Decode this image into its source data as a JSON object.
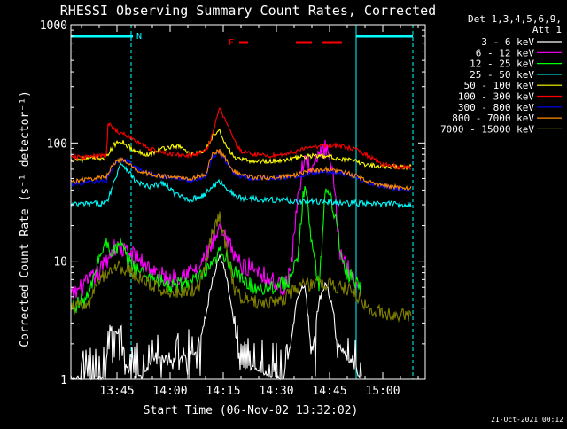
{
  "chart_data": {
    "type": "line",
    "title": "RHESSI Observing Summary Count Rates, Corrected",
    "xlabel": "Start Time (06-Nov-02 13:32:02)",
    "ylabel": "Corrected Count Rate (s⁻¹ detector⁻¹)",
    "y_scale": "log",
    "ylim": [
      1,
      1000
    ],
    "xlim": [
      0,
      100
    ],
    "x_units": "minutes after 13:32:02",
    "x_ticks": [
      {
        "value": 13,
        "label": "13:45"
      },
      {
        "value": 28,
        "label": "14:00"
      },
      {
        "value": 43,
        "label": "14:15"
      },
      {
        "value": 58,
        "label": "14:30"
      },
      {
        "value": 73,
        "label": "14:45"
      },
      {
        "value": 88,
        "label": "15:00"
      }
    ],
    "y_ticks": [
      {
        "value": 1,
        "label": "1"
      },
      {
        "value": 10,
        "label": "10"
      },
      {
        "value": 100,
        "label": "100"
      },
      {
        "value": 1000,
        "label": "1000"
      }
    ],
    "legend": {
      "placement": "top-right",
      "header": [
        "Det 1,3,4,5,6,9,",
        "Att 1"
      ]
    },
    "flag_markers": {
      "night_label": "N",
      "flare_label": "F"
    },
    "timestamp": "21-Oct-2021 00:12",
    "series": [
      {
        "name": "3 - 6 keV",
        "color": "#ffffff",
        "x": [
          0,
          10,
          10.5,
          14,
          16,
          20,
          24,
          28,
          32,
          36,
          38,
          40,
          42,
          44,
          46,
          48,
          52,
          56,
          60,
          62,
          64,
          66,
          68,
          70,
          72,
          74,
          75,
          80,
          82
        ],
        "y": [
          1,
          1,
          2.7,
          2.7,
          1.2,
          1,
          1.6,
          1.4,
          1.5,
          1.8,
          3.5,
          7,
          11.5,
          7,
          3,
          1.3,
          1.2,
          1.1,
          1,
          2,
          5,
          6.5,
          1.6,
          4.6,
          6.5,
          4,
          2,
          1.3,
          1
        ]
      },
      {
        "name": "6 - 12 keV",
        "color": "#ff00ff",
        "x": [
          0,
          8,
          12,
          16,
          20,
          24,
          28,
          32,
          36,
          40,
          42,
          44,
          46,
          48,
          52,
          56,
          60,
          62,
          64,
          66,
          68,
          70,
          72,
          74,
          76,
          78,
          80,
          82
        ],
        "y": [
          5,
          8,
          13,
          12,
          10,
          8,
          7,
          8,
          8.5,
          14,
          18,
          15,
          12,
          9,
          9,
          7,
          6,
          8,
          35,
          80,
          55,
          82,
          90,
          50,
          12,
          9,
          7,
          6.2
        ]
      },
      {
        "name": "12 - 25 keV",
        "color": "#00ff00",
        "x": [
          0,
          5,
          8,
          10,
          12,
          14,
          16,
          20,
          24,
          28,
          32,
          36,
          40,
          42,
          44,
          46,
          48,
          52,
          56,
          60,
          62,
          64,
          66,
          68,
          70,
          72,
          74,
          76,
          78,
          80,
          82
        ],
        "y": [
          4,
          5,
          11,
          14,
          12,
          14,
          10,
          8,
          7,
          6,
          6.5,
          7,
          9,
          12,
          11,
          8,
          7,
          6,
          6,
          6.5,
          7,
          10,
          50,
          14,
          6,
          45,
          30,
          12,
          8,
          7,
          6
        ]
      },
      {
        "name": "25 - 50 keV",
        "color": "#00ffff",
        "x": [
          0,
          10,
          12,
          14,
          16,
          18,
          22,
          26,
          30,
          34,
          38,
          40,
          42,
          44,
          46,
          48,
          52,
          56,
          60,
          64,
          68,
          72,
          76,
          80,
          84,
          90,
          96
        ],
        "y": [
          30,
          31,
          45,
          68,
          60,
          48,
          42,
          46,
          36,
          33,
          37,
          43,
          47,
          42,
          36,
          34,
          34,
          33,
          33,
          32,
          32,
          32,
          31,
          31,
          30.5,
          30.5,
          30
        ]
      },
      {
        "name": "50 - 100 keV",
        "color": "#ffff00",
        "x": [
          0,
          10,
          12,
          14,
          16,
          18,
          22,
          26,
          30,
          32,
          34,
          38,
          40,
          42,
          44,
          46,
          48,
          52,
          56,
          60,
          64,
          68,
          72,
          76,
          80,
          84,
          90,
          96
        ],
        "y": [
          72,
          75,
          95,
          105,
          95,
          85,
          80,
          90,
          95,
          88,
          80,
          85,
          115,
          125,
          95,
          75,
          72,
          70,
          70,
          72,
          75,
          78,
          77,
          74,
          70,
          65,
          63,
          63
        ]
      },
      {
        "name": "100 - 300 keV",
        "color": "#ff0000",
        "x": [
          0,
          10,
          10.5,
          14,
          16,
          18,
          22,
          26,
          30,
          34,
          38,
          40,
          42,
          44,
          46,
          48,
          52,
          56,
          60,
          64,
          68,
          72,
          76,
          80,
          84,
          88,
          92,
          96
        ],
        "y": [
          75,
          78,
          145,
          120,
          115,
          105,
          90,
          82,
          80,
          78,
          85,
          120,
          195,
          150,
          105,
          85,
          80,
          78,
          80,
          86,
          92,
          96,
          94,
          88,
          78,
          66,
          63,
          62
        ]
      },
      {
        "name": "300 - 800 keV",
        "color": "#0000ff",
        "x": [
          0,
          10,
          12,
          14,
          16,
          18,
          22,
          26,
          30,
          34,
          38,
          40,
          42,
          44,
          46,
          48,
          52,
          56,
          60,
          64,
          68,
          72,
          76,
          80,
          84,
          90,
          96
        ],
        "y": [
          45,
          48,
          65,
          73,
          70,
          62,
          55,
          52,
          50,
          48,
          52,
          78,
          82,
          68,
          56,
          52,
          50,
          50,
          51,
          52,
          55,
          57,
          56,
          52,
          46,
          42,
          40
        ]
      },
      {
        "name": "800 - 7000 keV",
        "color": "#ff8c00",
        "x": [
          0,
          10,
          12,
          14,
          16,
          18,
          22,
          26,
          30,
          34,
          38,
          40,
          42,
          44,
          46,
          48,
          52,
          56,
          60,
          64,
          68,
          72,
          76,
          80,
          84,
          90,
          96
        ],
        "y": [
          47,
          52,
          68,
          72,
          68,
          60,
          55,
          52,
          51,
          50,
          54,
          82,
          85,
          72,
          58,
          53,
          51,
          51,
          52,
          54,
          58,
          60,
          58,
          53,
          47,
          43,
          41
        ]
      },
      {
        "name": "7000 - 15000 keV",
        "color": "#808000",
        "x": [
          0,
          5,
          8,
          12,
          16,
          20,
          24,
          28,
          32,
          36,
          38,
          40,
          42,
          44,
          46,
          48,
          52,
          56,
          60,
          64,
          68,
          72,
          76,
          80,
          82,
          84,
          90,
          96
        ],
        "y": [
          4,
          4.2,
          7,
          9,
          8.5,
          7,
          6,
          5.5,
          5.5,
          6,
          10,
          18,
          25,
          12,
          6,
          5,
          4.5,
          4.5,
          4.8,
          6,
          6.5,
          6.5,
          6,
          5.5,
          4.6,
          3.8,
          3.6,
          3.5
        ]
      }
    ]
  }
}
